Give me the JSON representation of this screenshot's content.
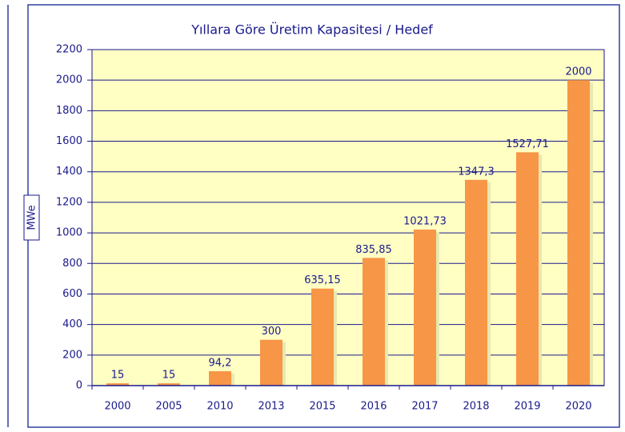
{
  "chart_data": {
    "type": "bar",
    "title": "Yıllara Göre Üretim Kapasitesi / Hedef",
    "y_label": "MWe",
    "categories": [
      "2000",
      "2005",
      "2010",
      "2013",
      "2015",
      "2016",
      "2017",
      "2018",
      "2019",
      "2020"
    ],
    "values": [
      15,
      15,
      94.2,
      300,
      635.15,
      835.85,
      1021.73,
      1347.3,
      1527.71,
      2000
    ],
    "value_labels": [
      "15",
      "15",
      "94,2",
      "300",
      "635,15",
      "835,85",
      "1021,73",
      "1347,3",
      "1527,71",
      "2000"
    ],
    "color": "#f79646",
    "ylim": [
      0,
      2200
    ],
    "yticks": [
      0,
      200,
      400,
      600,
      800,
      1000,
      1200,
      1400,
      1600,
      1800,
      2000,
      2200
    ],
    "grid": true
  }
}
